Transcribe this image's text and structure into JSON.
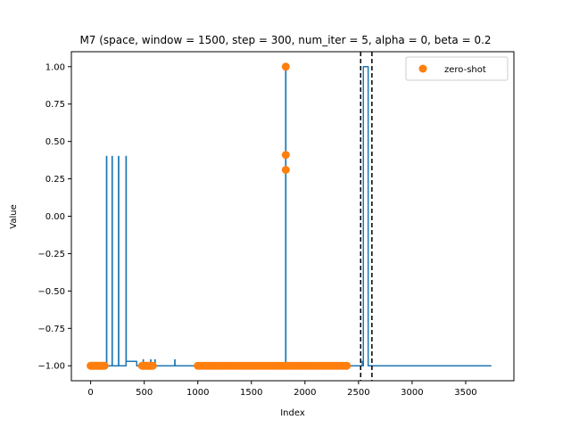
{
  "chart_data": {
    "type": "line",
    "title": "M7 (space, window = 1500, step = 300, num_iter = 5, alpha = 0, beta = 0.2",
    "xlabel": "Index",
    "ylabel": "Value",
    "xlim": [
      -180,
      3950
    ],
    "ylim": [
      -1.1,
      1.1
    ],
    "xticks": [
      0,
      500,
      1000,
      1500,
      2000,
      2500,
      3000,
      3500
    ],
    "xtick_labels": [
      "0",
      "500",
      "1000",
      "1500",
      "2000",
      "2500",
      "3000",
      "3500"
    ],
    "yticks": [
      -1.0,
      -0.75,
      -0.5,
      -0.25,
      0.0,
      0.25,
      0.5,
      0.75,
      1.0
    ],
    "ytick_labels": [
      "−1.00",
      "−0.75",
      "−0.50",
      "−0.25",
      "0.00",
      "0.25",
      "0.50",
      "0.75",
      "1.00"
    ],
    "grid": false,
    "legend_position": "top-right",
    "colors": {
      "line": "#1f77b4",
      "points": "#ff7f0e",
      "vlines": "#000000"
    },
    "series": [
      {
        "kind": "line",
        "x": [
          0,
          148,
          148,
          150,
          150,
          200,
          200,
          202,
          202,
          260,
          260,
          262,
          262,
          330,
          330,
          332,
          332,
          430,
          430,
          490,
          490,
          492,
          492,
          560,
          560,
          562,
          562,
          600,
          600,
          602,
          602,
          785,
          785,
          787,
          787,
          1820,
          1820,
          1822,
          1822,
          2535,
          2535,
          2537,
          2537,
          2545,
          2545,
          2590,
          2590,
          3740
        ],
        "y": [
          -1.0,
          -1.0,
          0.4,
          0.4,
          -1.0,
          -1.0,
          0.4,
          0.4,
          -1.0,
          -1.0,
          0.4,
          0.4,
          -1.0,
          -1.0,
          0.4,
          0.4,
          -0.97,
          -0.97,
          -1.0,
          -1.0,
          -0.96,
          -0.96,
          -1.0,
          -1.0,
          -0.96,
          -0.96,
          -1.0,
          -1.0,
          -0.96,
          -0.96,
          -1.0,
          -1.0,
          -0.96,
          -0.96,
          -1.0,
          -1.0,
          1.0,
          1.0,
          -1.0,
          -1.0,
          -0.97,
          -0.97,
          -1.0,
          -1.0,
          1.0,
          1.0,
          -1.0,
          -1.0
        ]
      },
      {
        "kind": "scatter",
        "name": "zero-shot",
        "points": [
          [
            0,
            -1.0
          ],
          [
            10,
            -1.0
          ],
          [
            20,
            -1.0
          ],
          [
            30,
            -1.0
          ],
          [
            40,
            -1.0
          ],
          [
            50,
            -1.0
          ],
          [
            60,
            -1.0
          ],
          [
            70,
            -1.0
          ],
          [
            80,
            -1.0
          ],
          [
            90,
            -1.0
          ],
          [
            100,
            -1.0
          ],
          [
            110,
            -1.0
          ],
          [
            120,
            -1.0
          ],
          [
            130,
            -1.0
          ],
          [
            480,
            -1.0
          ],
          [
            490,
            -1.0
          ],
          [
            500,
            -1.0
          ],
          [
            510,
            -1.0
          ],
          [
            520,
            -1.0
          ],
          [
            530,
            -1.0
          ],
          [
            540,
            -1.0
          ],
          [
            550,
            -1.0
          ],
          [
            560,
            -1.0
          ],
          [
            570,
            -1.0
          ],
          [
            580,
            -1.0
          ],
          [
            1000,
            -1.0
          ],
          [
            1020,
            -1.0
          ],
          [
            1040,
            -1.0
          ],
          [
            1060,
            -1.0
          ],
          [
            1080,
            -1.0
          ],
          [
            1100,
            -1.0
          ],
          [
            1120,
            -1.0
          ],
          [
            1140,
            -1.0
          ],
          [
            1160,
            -1.0
          ],
          [
            1180,
            -1.0
          ],
          [
            1200,
            -1.0
          ],
          [
            1220,
            -1.0
          ],
          [
            1240,
            -1.0
          ],
          [
            1260,
            -1.0
          ],
          [
            1280,
            -1.0
          ],
          [
            1300,
            -1.0
          ],
          [
            1320,
            -1.0
          ],
          [
            1340,
            -1.0
          ],
          [
            1360,
            -1.0
          ],
          [
            1380,
            -1.0
          ],
          [
            1400,
            -1.0
          ],
          [
            1420,
            -1.0
          ],
          [
            1440,
            -1.0
          ],
          [
            1460,
            -1.0
          ],
          [
            1480,
            -1.0
          ],
          [
            1500,
            -1.0
          ],
          [
            1520,
            -1.0
          ],
          [
            1540,
            -1.0
          ],
          [
            1560,
            -1.0
          ],
          [
            1580,
            -1.0
          ],
          [
            1600,
            -1.0
          ],
          [
            1620,
            -1.0
          ],
          [
            1640,
            -1.0
          ],
          [
            1660,
            -1.0
          ],
          [
            1680,
            -1.0
          ],
          [
            1700,
            -1.0
          ],
          [
            1720,
            -1.0
          ],
          [
            1740,
            -1.0
          ],
          [
            1760,
            -1.0
          ],
          [
            1780,
            -1.0
          ],
          [
            1800,
            -1.0
          ],
          [
            1820,
            -1.0
          ],
          [
            1840,
            -1.0
          ],
          [
            1860,
            -1.0
          ],
          [
            1880,
            -1.0
          ],
          [
            1900,
            -1.0
          ],
          [
            1920,
            -1.0
          ],
          [
            1940,
            -1.0
          ],
          [
            1960,
            -1.0
          ],
          [
            1980,
            -1.0
          ],
          [
            2000,
            -1.0
          ],
          [
            2020,
            -1.0
          ],
          [
            2040,
            -1.0
          ],
          [
            2060,
            -1.0
          ],
          [
            2080,
            -1.0
          ],
          [
            2100,
            -1.0
          ],
          [
            2120,
            -1.0
          ],
          [
            2140,
            -1.0
          ],
          [
            2160,
            -1.0
          ],
          [
            2180,
            -1.0
          ],
          [
            2200,
            -1.0
          ],
          [
            2220,
            -1.0
          ],
          [
            2240,
            -1.0
          ],
          [
            2260,
            -1.0
          ],
          [
            2280,
            -1.0
          ],
          [
            2300,
            -1.0
          ],
          [
            2320,
            -1.0
          ],
          [
            2340,
            -1.0
          ],
          [
            2360,
            -1.0
          ],
          [
            2380,
            -1.0
          ],
          [
            2390,
            -1.0
          ],
          [
            1821,
            1.0
          ],
          [
            1821,
            0.41
          ],
          [
            1821,
            0.31
          ]
        ]
      }
    ],
    "vlines": [
      2520,
      2625
    ],
    "legend": [
      {
        "label": "zero-shot",
        "marker": "circle"
      }
    ]
  }
}
